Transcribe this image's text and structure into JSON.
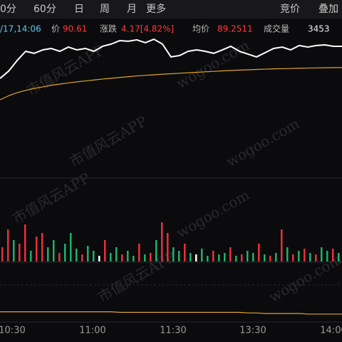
{
  "tabs": [
    "0分",
    "60分",
    "日",
    "周",
    "月",
    "更多"
  ],
  "right_tabs": [
    "竞价",
    "叠加"
  ],
  "info": {
    "time": "/17,14:06",
    "price_label": "价",
    "price": "90.61",
    "change_label": "涨跌",
    "change": "4.17[4.82%]",
    "avg_label": "均价",
    "avg": "89.2511",
    "volume_label": "成交量",
    "volume": "3453"
  },
  "watermark": [
    "市值风云APP",
    "wogoo.com"
  ],
  "chart": {
    "price": [
      88.56,
      89.02,
      89.7,
      90.29,
      90.16,
      90.38,
      90.47,
      90.29,
      90.56,
      90.38,
      90.47,
      90.29,
      90.61,
      90.75,
      90.97,
      90.93,
      91.02,
      90.84,
      91.06,
      90.75,
      89.93,
      90.02,
      90.29,
      90.38,
      90.29,
      90.16,
      90.38,
      90.61,
      90.29,
      90.11,
      89.93,
      90.2,
      90.47,
      90.56,
      90.38,
      90.66,
      90.56,
      90.66,
      90.7,
      90.61,
      90.61
    ],
    "price_color": "#ffffff",
    "avg": [
      87.2,
      87.45,
      87.65,
      87.8,
      87.92,
      88.02,
      88.12,
      88.2,
      88.27,
      88.34,
      88.4,
      88.46,
      88.52,
      88.57,
      88.62,
      88.67,
      88.72,
      88.76,
      88.79,
      88.83,
      88.86,
      88.89,
      88.92,
      88.95,
      88.98,
      89.01,
      89.04,
      89.07,
      89.09,
      89.11,
      89.13,
      89.15,
      89.17,
      89.18,
      89.19,
      89.21,
      89.22,
      89.23,
      89.24,
      89.25,
      89.25
    ],
    "avg_color": "#e0a526",
    "price_ylim": [
      82.2,
      91.29
    ],
    "volume": [
      20,
      45,
      30,
      25,
      52,
      15,
      35,
      40,
      20,
      30,
      12,
      25,
      40,
      18,
      10,
      22,
      15,
      8,
      30,
      12,
      20,
      10,
      15,
      8,
      25,
      10,
      12,
      30,
      55,
      40,
      20,
      15,
      25,
      12,
      10,
      18,
      8,
      15,
      10,
      12,
      20,
      8,
      10,
      15,
      12,
      25,
      10,
      8,
      12,
      45,
      20,
      10,
      15,
      18,
      12,
      10,
      20,
      15,
      18,
      12
    ],
    "volume_colors": [
      "#e8303a",
      "#e8303a",
      "#1fb06a",
      "#e8303a",
      "#e8303a",
      "#1fb06a",
      "#e8303a",
      "#e8303a",
      "#1fb06a",
      "#1fb06a",
      "#e8303a",
      "#1fb06a",
      "#1fb06a",
      "#1fb06a",
      "#e8303a",
      "#1fb06a",
      "#1fb06a",
      "#ffffff",
      "#e8303a",
      "#1fb06a",
      "#1fb06a",
      "#e8303a",
      "#1fb06a",
      "#1fb06a",
      "#e8303a",
      "#1fb06a",
      "#e8303a",
      "#1fb06a",
      "#e8303a",
      "#e8303a",
      "#1fb06a",
      "#1fb06a",
      "#e8303a",
      "#1fb06a",
      "#ffffff",
      "#1fb06a",
      "#1fb06a",
      "#e8303a",
      "#1fb06a",
      "#1fb06a",
      "#e8303a",
      "#1fb06a",
      "#e8303a",
      "#1fb06a",
      "#1fb06a",
      "#e8303a",
      "#1fb06a",
      "#e8303a",
      "#1fb06a",
      "#e8303a",
      "#1fb06a",
      "#e8303a",
      "#1fb06a",
      "#e8303a",
      "#1fb06a",
      "#e8303a",
      "#1fb06a",
      "#1fb06a",
      "#e8303a",
      "#1fb06a"
    ],
    "volume_ylim": [
      0,
      60
    ],
    "indicator": [
      0.28,
      0.28,
      0.28,
      0.28,
      0.28,
      0.28,
      0.28,
      0.28,
      0.28,
      0.28,
      0.28,
      0.28,
      0.28,
      0.28,
      0.27,
      0.27,
      0.27,
      0.27,
      0.27,
      0.27,
      0.27,
      0.27,
      0.27,
      0.27,
      0.27,
      0.27,
      0.27,
      0.27,
      0.27,
      0.26,
      0.26,
      0.25,
      0.25,
      0.25,
      0.25,
      0.25,
      0.24,
      0.24,
      0.24,
      0.24,
      0.24
    ],
    "indicator_color": "#e0a526",
    "indicator_ylim": [
      0,
      1
    ],
    "x_labels": [
      "10:30",
      "11:00",
      "11:30",
      "13:30",
      "14:00"
    ]
  }
}
